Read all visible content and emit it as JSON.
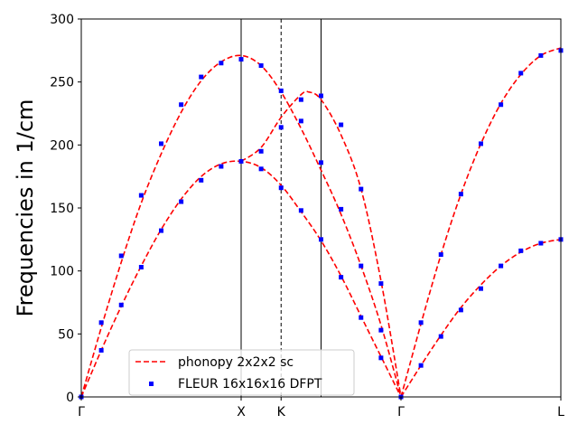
{
  "chart_data": {
    "type": "line",
    "title": "",
    "xlabel": "",
    "ylabel": "Frequencies in 1/cm",
    "ylim": [
      0,
      300
    ],
    "y_ticks": [
      0,
      50,
      100,
      150,
      200,
      250,
      300
    ],
    "x_ticks": [
      {
        "label": "Γ",
        "x": 0.0
      },
      {
        "label": "X",
        "x": 1.0
      },
      {
        "label": "K",
        "x": 1.25
      },
      {
        "label": "Γ",
        "x": 2.0
      },
      {
        "label": "L",
        "x": 3.0
      }
    ],
    "xlim": [
      0,
      3.0
    ],
    "vertical_lines": [
      {
        "x": 1.0,
        "style": "solid"
      },
      {
        "x": 1.25,
        "style": "dashed"
      },
      {
        "x": 1.5,
        "style": "solid"
      }
    ],
    "legend_position": "lower-center",
    "colors": {
      "line": "#ff0000",
      "marker": "#0000ff"
    },
    "series": [
      {
        "name": "phonopy 2x2x2 sc",
        "kind": "dashed-line",
        "branches": [
          [
            [
              0,
              0
            ],
            [
              0.125,
              55
            ],
            [
              0.25,
              107
            ],
            [
              0.375,
              154
            ],
            [
              0.5,
              193
            ],
            [
              0.625,
              226
            ],
            [
              0.75,
              251
            ],
            [
              0.875,
              266
            ],
            [
              1.0,
              271
            ],
            [
              1.125,
              263
            ],
            [
              1.25,
              242
            ],
            [
              1.375,
              213
            ],
            [
              1.5,
              180
            ],
            [
              1.625,
              145
            ],
            [
              1.75,
              104
            ],
            [
              1.875,
              57
            ],
            [
              2.0,
              0
            ]
          ],
          [
            [
              0,
              0
            ],
            [
              0.125,
              37
            ],
            [
              0.25,
              72
            ],
            [
              0.375,
              104
            ],
            [
              0.5,
              133
            ],
            [
              0.625,
              157
            ],
            [
              0.75,
              175
            ],
            [
              0.875,
              185
            ],
            [
              1.0,
              187
            ],
            [
              1.125,
              182
            ],
            [
              1.25,
              168
            ],
            [
              1.375,
              147
            ],
            [
              1.5,
              124
            ],
            [
              1.625,
              96
            ],
            [
              1.75,
              64
            ],
            [
              1.875,
              32
            ],
            [
              2.0,
              0
            ]
          ],
          [
            [
              1.0,
              187
            ],
            [
              1.125,
              198
            ],
            [
              1.25,
              222
            ],
            [
              1.375,
              240
            ],
            [
              1.425,
              242
            ],
            [
              1.5,
              236
            ],
            [
              1.625,
              208
            ],
            [
              1.75,
              165
            ],
            [
              1.875,
              92
            ],
            [
              2.0,
              0
            ]
          ],
          [
            [
              2.0,
              0
            ],
            [
              2.125,
              58
            ],
            [
              2.25,
              113
            ],
            [
              2.375,
              161
            ],
            [
              2.5,
              201
            ],
            [
              2.625,
              233
            ],
            [
              2.75,
              256
            ],
            [
              2.875,
              271
            ],
            [
              3.0,
              277
            ]
          ],
          [
            [
              2.0,
              0
            ],
            [
              2.125,
              25
            ],
            [
              2.25,
              49
            ],
            [
              2.375,
              71
            ],
            [
              2.5,
              89
            ],
            [
              2.625,
              104
            ],
            [
              2.75,
              115
            ],
            [
              2.875,
              122
            ],
            [
              3.0,
              125
            ]
          ]
        ]
      },
      {
        "name": "FLEUR 16x16x16 DFPT",
        "kind": "square-markers",
        "points": [
          [
            0,
            0
          ],
          [
            0.125,
            59
          ],
          [
            0.25,
            112
          ],
          [
            0.375,
            160
          ],
          [
            0.5,
            201
          ],
          [
            0.625,
            232
          ],
          [
            0.75,
            254
          ],
          [
            0.875,
            265
          ],
          [
            1.0,
            268
          ],
          [
            1.125,
            263
          ],
          [
            1.25,
            243
          ],
          [
            1.375,
            236
          ],
          [
            1.5,
            239
          ],
          [
            1.625,
            216
          ],
          [
            1.75,
            165
          ],
          [
            1.875,
            90
          ],
          [
            0.125,
            37
          ],
          [
            0.25,
            73
          ],
          [
            0.375,
            103
          ],
          [
            0.5,
            132
          ],
          [
            0.625,
            155
          ],
          [
            0.75,
            172
          ],
          [
            0.875,
            183
          ],
          [
            1.0,
            187
          ],
          [
            1.125,
            195
          ],
          [
            1.25,
            214
          ],
          [
            1.375,
            219
          ],
          [
            1.5,
            186
          ],
          [
            1.625,
            149
          ],
          [
            1.75,
            104
          ],
          [
            1.875,
            53
          ],
          [
            1.125,
            181
          ],
          [
            1.25,
            166
          ],
          [
            1.375,
            148
          ],
          [
            1.5,
            125
          ],
          [
            1.625,
            95
          ],
          [
            1.75,
            63
          ],
          [
            1.875,
            31
          ],
          [
            2.0,
            0
          ],
          [
            2.125,
            59
          ],
          [
            2.25,
            113
          ],
          [
            2.375,
            161
          ],
          [
            2.5,
            201
          ],
          [
            2.625,
            232
          ],
          [
            2.75,
            257
          ],
          [
            2.875,
            271
          ],
          [
            3.0,
            275
          ],
          [
            2.125,
            25
          ],
          [
            2.25,
            48
          ],
          [
            2.375,
            69
          ],
          [
            2.5,
            86
          ],
          [
            2.625,
            104
          ],
          [
            2.75,
            116
          ],
          [
            2.875,
            122
          ],
          [
            3.0,
            125
          ]
        ]
      }
    ]
  }
}
